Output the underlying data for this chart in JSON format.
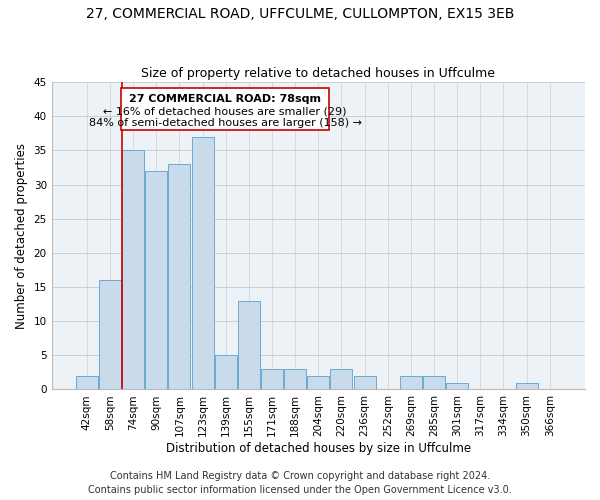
{
  "title": "27, COMMERCIAL ROAD, UFFCULME, CULLOMPTON, EX15 3EB",
  "subtitle": "Size of property relative to detached houses in Uffculme",
  "xlabel": "Distribution of detached houses by size in Uffculme",
  "ylabel": "Number of detached properties",
  "categories": [
    "42sqm",
    "58sqm",
    "74sqm",
    "90sqm",
    "107sqm",
    "123sqm",
    "139sqm",
    "155sqm",
    "171sqm",
    "188sqm",
    "204sqm",
    "220sqm",
    "236sqm",
    "252sqm",
    "269sqm",
    "285sqm",
    "301sqm",
    "317sqm",
    "334sqm",
    "350sqm",
    "366sqm"
  ],
  "values": [
    2,
    16,
    35,
    32,
    33,
    37,
    5,
    13,
    3,
    3,
    2,
    3,
    2,
    0,
    2,
    2,
    1,
    0,
    0,
    1,
    0
  ],
  "bar_color": "#c9daea",
  "bar_edge_color": "#6aaad4",
  "bar_edge_width": 0.7,
  "vline_x_index": 2,
  "vline_color": "#cc0000",
  "vline_linewidth": 1.2,
  "annotation_line1": "27 COMMERCIAL ROAD: 78sqm",
  "annotation_line2": "← 16% of detached houses are smaller (29)",
  "annotation_line3": "84% of semi-detached houses are larger (158) →",
  "box_color": "#ffffff",
  "box_edge_color": "#cc0000",
  "ylim": [
    0,
    45
  ],
  "yticks": [
    0,
    5,
    10,
    15,
    20,
    25,
    30,
    35,
    40,
    45
  ],
  "footer_line1": "Contains HM Land Registry data © Crown copyright and database right 2024.",
  "footer_line2": "Contains public sector information licensed under the Open Government Licence v3.0.",
  "bg_color": "#edf2f7",
  "grid_color": "#c8d0d8",
  "title_fontsize": 10,
  "subtitle_fontsize": 9,
  "axis_label_fontsize": 8.5,
  "tick_fontsize": 7.5,
  "annotation_fontsize": 8,
  "footer_fontsize": 7
}
